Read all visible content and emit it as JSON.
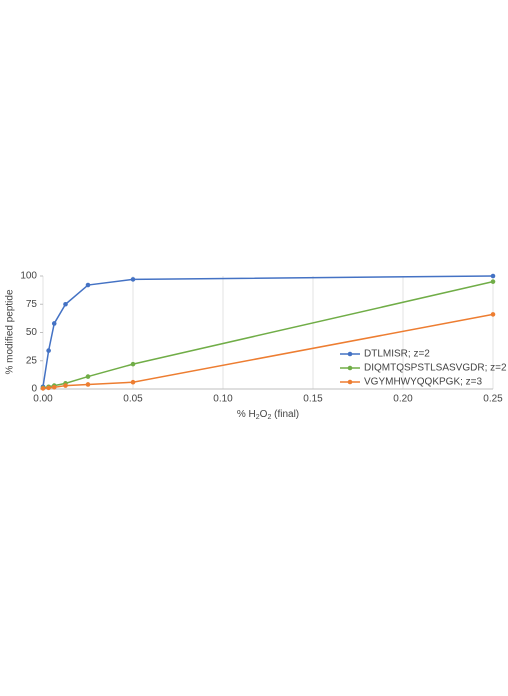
{
  "chart_data": {
    "type": "line",
    "xlabel": [
      "% H",
      "2",
      "O",
      "2",
      " (final)"
    ],
    "ylabel": "% modified peptide",
    "x": [
      0,
      0.003125,
      0.00625,
      0.0125,
      0.025,
      0.05,
      0.25
    ],
    "series": [
      {
        "name": "DTLMISR; z=2",
        "color": "#4472c4",
        "values": [
          2,
          34,
          58,
          75,
          92,
          97,
          100
        ]
      },
      {
        "name": "DIQMTQSPSTLSASVGDR; z=2",
        "color": "#70ad47",
        "values": [
          1,
          2,
          3,
          5,
          11,
          22,
          95
        ]
      },
      {
        "name": "VGYMHWYQQKPGK; z=3",
        "color": "#ed7d31",
        "values": [
          0.5,
          1,
          1.5,
          3,
          4,
          6,
          66
        ]
      }
    ],
    "xlim": [
      0,
      0.25
    ],
    "xticks": [
      {
        "value": 0,
        "label": "0.00"
      },
      {
        "value": 0.05,
        "label": "0.05"
      },
      {
        "value": 0.1,
        "label": "0.10"
      },
      {
        "value": 0.15,
        "label": "0.15"
      },
      {
        "value": 0.2,
        "label": "0.20"
      },
      {
        "value": 0.25,
        "label": "0.25"
      }
    ],
    "ylim": [
      0,
      100
    ],
    "yticks": [
      0,
      25,
      50,
      75,
      100
    ],
    "grid": "x",
    "legend": "right"
  }
}
